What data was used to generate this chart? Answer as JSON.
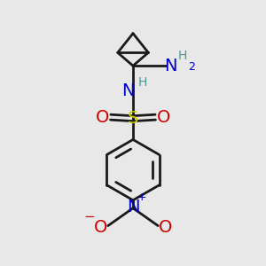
{
  "bg_color": "#e8e8e8",
  "bond_color": "#1a1a1a",
  "bond_lw": 2.0,
  "colors": {
    "N": "#0000cc",
    "S": "#cccc00",
    "O": "#cc0000",
    "H": "#4a9999",
    "C": "#1a1a1a"
  },
  "font_size_main": 14,
  "font_size_small": 10,
  "font_size_super": 9
}
